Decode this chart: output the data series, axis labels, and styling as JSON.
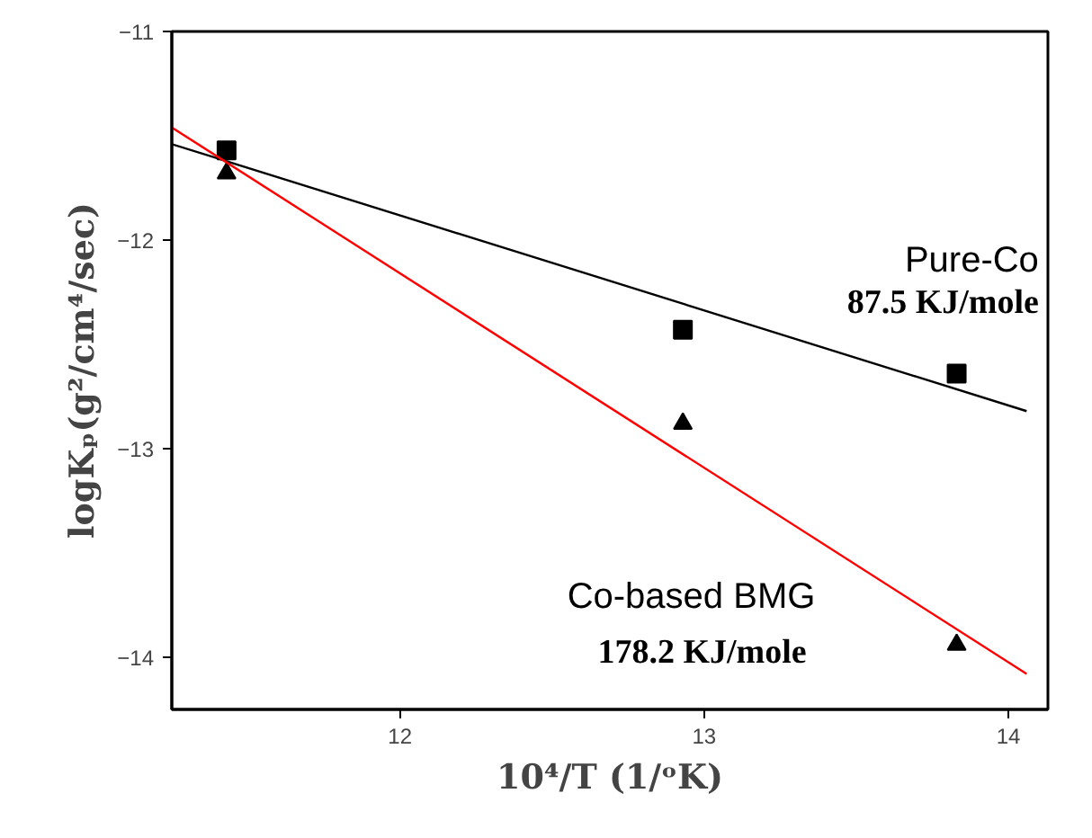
{
  "chart_data": {
    "type": "scatter",
    "xlabel": "10⁴/T (1/ᵒK)",
    "ylabel": "logKₚ(g²/cm⁴/sec)",
    "xlim": [
      11.25,
      14.13
    ],
    "ylim": [
      -14.25,
      -11
    ],
    "xticks": [
      12,
      13,
      14
    ],
    "yticks": [
      -14,
      -13,
      -12,
      -11
    ],
    "grid": false,
    "series": [
      {
        "marker": "square",
        "color": "#000000",
        "x": [
          11.43,
          12.93,
          13.83
        ],
        "values": [
          -11.57,
          -12.43,
          -12.64
        ]
      },
      {
        "marker": "triangle",
        "color": "#000000",
        "x": [
          11.43,
          12.93,
          13.83
        ],
        "values": [
          -11.68,
          -12.88,
          -13.94
        ]
      },
      {
        "type": "line",
        "color": "#000000",
        "x": [
          11.25,
          14.06
        ],
        "values": [
          -11.54,
          -12.82
        ]
      },
      {
        "type": "line",
        "color": "#ff0000",
        "x": [
          11.25,
          14.06
        ],
        "values": [
          -11.46,
          -14.08
        ]
      }
    ],
    "annotations": [
      "Pure-Co",
      "87.5 KJ/mole",
      "Co-based BMG",
      "178.2 KJ/mole"
    ]
  }
}
